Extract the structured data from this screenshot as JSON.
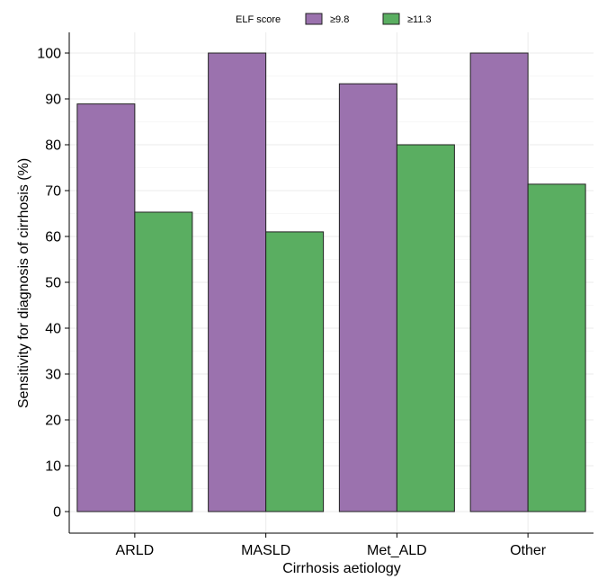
{
  "chart_data": {
    "type": "bar",
    "title": "",
    "xlabel": "Cirrhosis aetiology",
    "ylabel": "Sensitivity for diagnosis of cirrhosis (%)",
    "categories": [
      "ARLD",
      "MASLD",
      "Met_ALD",
      "Other"
    ],
    "series": [
      {
        "name": "≥9.8",
        "values": [
          88.9,
          100,
          93.3,
          100
        ]
      },
      {
        "name": "≥11.3",
        "values": [
          65.3,
          61.0,
          80.0,
          71.4
        ]
      }
    ],
    "ylim": [
      0,
      100
    ],
    "yticks": [
      0,
      10,
      20,
      30,
      40,
      50,
      60,
      70,
      80,
      90,
      100
    ],
    "grid": true,
    "legend": {
      "title": "ELF score",
      "position": "top"
    }
  },
  "colors": {
    "series": [
      "#9b72ae",
      "#5aae61"
    ],
    "bar_stroke": "#222222",
    "grid": "#ebebeb",
    "axis": "#000000"
  }
}
